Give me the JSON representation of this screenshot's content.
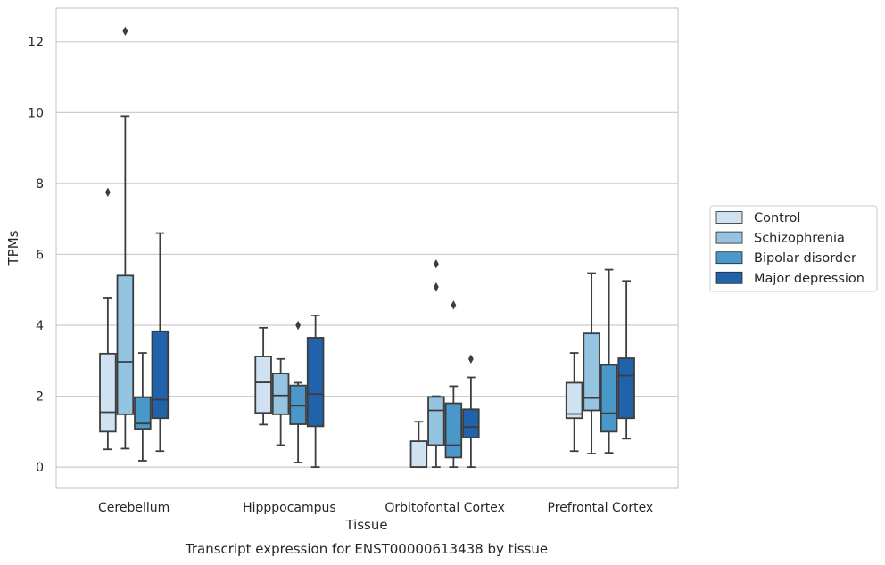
{
  "chart_data": {
    "type": "box",
    "title": "Transcript expression for ENST00000613438 by tissue",
    "xlabel": "Tissue",
    "ylabel": "TPMs",
    "ylim": [
      -0.6,
      12.95
    ],
    "yticks": [
      0,
      2,
      4,
      6,
      8,
      10,
      12
    ],
    "grid": true,
    "legend_placement": "right",
    "categories": [
      "Cerebellum",
      "Hipppocampus",
      "Orbitofontal Cortex",
      "Prefrontal Cortex"
    ],
    "series": [
      {
        "name": "Control",
        "color": "#d0e1f2",
        "boxes": [
          {
            "whislo": 0.5,
            "q1": 1.0,
            "med": 1.55,
            "q3": 3.2,
            "whishi": 4.78,
            "fliers": [
              7.75
            ]
          },
          {
            "whislo": 1.2,
            "q1": 1.53,
            "med": 2.39,
            "q3": 3.12,
            "whishi": 3.93,
            "fliers": []
          },
          {
            "whislo": 0.0,
            "q1": 0.0,
            "med": 0.0,
            "q3": 0.73,
            "whishi": 1.28,
            "fliers": []
          },
          {
            "whislo": 0.45,
            "q1": 1.38,
            "med": 1.5,
            "q3": 2.38,
            "whishi": 3.22,
            "fliers": []
          }
        ]
      },
      {
        "name": "Schizophrenia",
        "color": "#94c4df",
        "boxes": [
          {
            "whislo": 0.52,
            "q1": 1.49,
            "med": 2.97,
            "q3": 5.4,
            "whishi": 9.9,
            "fliers": [
              12.3
            ]
          },
          {
            "whislo": 0.62,
            "q1": 1.49,
            "med": 2.02,
            "q3": 2.64,
            "whishi": 3.05,
            "fliers": []
          },
          {
            "whislo": 0.0,
            "q1": 0.62,
            "med": 1.6,
            "q3": 1.98,
            "whishi": 2.0,
            "fliers": [
              5.08,
              5.73
            ]
          },
          {
            "whislo": 0.38,
            "q1": 1.6,
            "med": 1.95,
            "q3": 3.77,
            "whishi": 5.47,
            "fliers": []
          }
        ]
      },
      {
        "name": "Bipolar disorder",
        "color": "#4a98c9",
        "boxes": [
          {
            "whislo": 0.18,
            "q1": 1.08,
            "med": 1.23,
            "q3": 1.97,
            "whishi": 3.22,
            "fliers": []
          },
          {
            "whislo": 0.13,
            "q1": 1.21,
            "med": 1.73,
            "q3": 2.3,
            "whishi": 2.38,
            "fliers": [
              4.0
            ]
          },
          {
            "whislo": 0.0,
            "q1": 0.27,
            "med": 0.62,
            "q3": 1.8,
            "whishi": 2.28,
            "fliers": [
              4.57
            ]
          },
          {
            "whislo": 0.4,
            "q1": 1.0,
            "med": 1.52,
            "q3": 2.88,
            "whishi": 5.57,
            "fliers": []
          }
        ]
      },
      {
        "name": "Major depression",
        "color": "#2163aa",
        "boxes": [
          {
            "whislo": 0.45,
            "q1": 1.38,
            "med": 1.9,
            "q3": 3.83,
            "whishi": 6.6,
            "fliers": []
          },
          {
            "whislo": 0.0,
            "q1": 1.15,
            "med": 2.06,
            "q3": 3.65,
            "whishi": 4.28,
            "fliers": []
          },
          {
            "whislo": 0.0,
            "q1": 0.83,
            "med": 1.13,
            "q3": 1.63,
            "whishi": 2.53,
            "fliers": [
              3.05
            ]
          },
          {
            "whislo": 0.8,
            "q1": 1.38,
            "med": 2.58,
            "q3": 3.07,
            "whishi": 5.25,
            "fliers": []
          }
        ]
      }
    ]
  }
}
